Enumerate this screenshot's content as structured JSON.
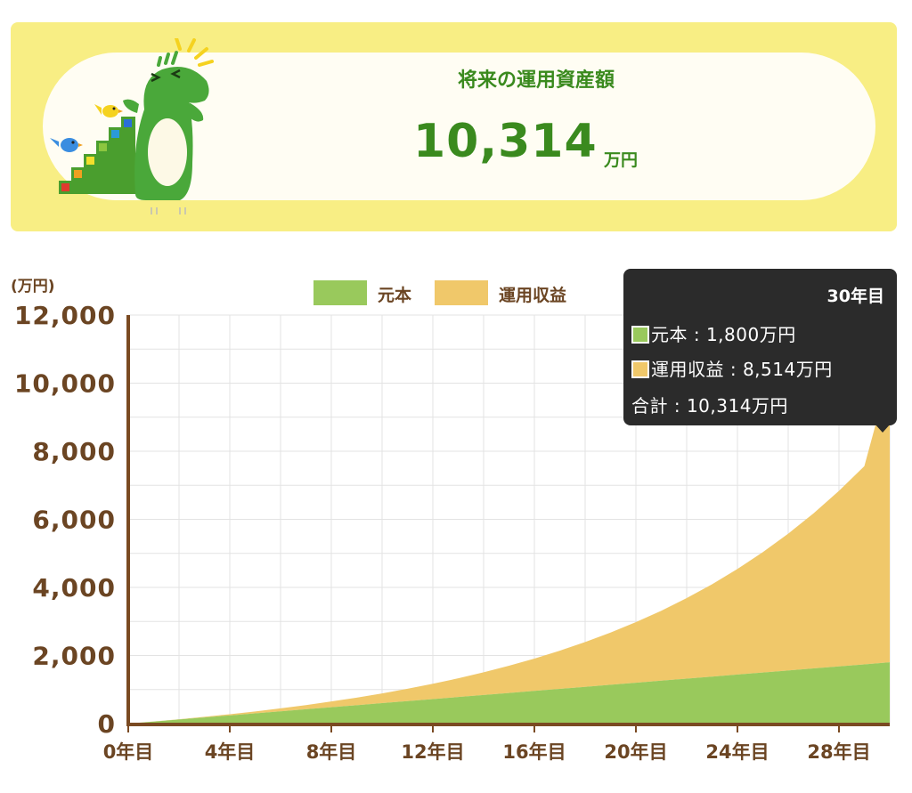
{
  "summary": {
    "title": "将来の運用資産額",
    "amount": "10,314",
    "unit": "万円"
  },
  "colors": {
    "panel": "#f8ee84",
    "text_green": "#3a8a1e",
    "principal": "#99c95c",
    "earnings": "#f0c86a",
    "axis": "#7a4a22",
    "axis_text": "#6b4523",
    "tooltip_bg": "#2b2b2b"
  },
  "tooltip": {
    "title": "30年目",
    "principal": "元本 : 1,800万円",
    "earnings": "運用収益 : 8,514万円",
    "total": "合計 : 10,314万円"
  },
  "mascot": {
    "icon": "crocodile-mascot-on-stairs-icon"
  },
  "chart_data": {
    "type": "area",
    "stacked": true,
    "unit_label": "(万円)",
    "xlabel": "",
    "ylabel": "",
    "x": [
      0,
      1,
      2,
      3,
      4,
      5,
      6,
      7,
      8,
      9,
      10,
      11,
      12,
      13,
      14,
      15,
      16,
      17,
      18,
      19,
      20,
      21,
      22,
      23,
      24,
      25,
      26,
      27,
      28,
      29,
      30
    ],
    "x_ticks": [
      0,
      4,
      8,
      12,
      16,
      20,
      24,
      28
    ],
    "x_tick_labels": [
      "0年目",
      "4年目",
      "8年目",
      "12年目",
      "16年目",
      "20年目",
      "24年目",
      "28年目"
    ],
    "y_ticks": [
      0,
      2000,
      4000,
      6000,
      8000,
      10000,
      12000
    ],
    "y_tick_labels": [
      "0",
      "2,000",
      "4,000",
      "6,000",
      "8,000",
      "10,000",
      "12,000"
    ],
    "ylim": [
      0,
      12000
    ],
    "xlim": [
      0,
      30
    ],
    "grid": true,
    "legend_position": "top-center",
    "series": [
      {
        "name": "元本",
        "color": "#99c95c",
        "values": [
          0,
          60,
          120,
          180,
          240,
          300,
          360,
          420,
          480,
          540,
          600,
          660,
          720,
          780,
          840,
          900,
          960,
          1020,
          1080,
          1140,
          1200,
          1260,
          1320,
          1380,
          1440,
          1500,
          1560,
          1620,
          1680,
          1740,
          1800
        ]
      },
      {
        "name": "運用収益",
        "color": "#f0c86a",
        "values": [
          0,
          2,
          8,
          19,
          35,
          57,
          87,
          124,
          169,
          223,
          287,
          362,
          449,
          550,
          666,
          799,
          950,
          1121,
          1315,
          1533,
          1779,
          2055,
          2365,
          2713,
          3101,
          3535,
          4019,
          4557,
          5156,
          5822,
          8514
        ]
      }
    ]
  }
}
